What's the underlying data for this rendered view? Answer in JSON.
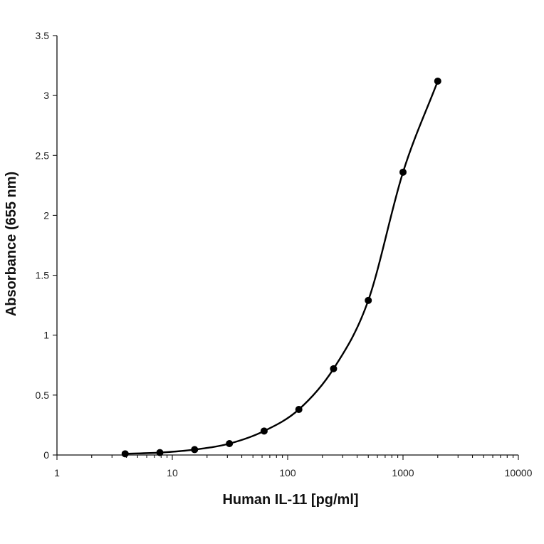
{
  "chart_data": {
    "type": "scatter",
    "title": "",
    "xlabel": "Human IL-11 [pg/ml]",
    "ylabel": "Absorbance (655 nm)",
    "x_scale": "log",
    "xlim": [
      1,
      10000
    ],
    "ylim": [
      0,
      3.5
    ],
    "x_ticks": [
      1,
      10,
      100,
      1000,
      10000
    ],
    "x_tick_labels": [
      "1",
      "10",
      "100",
      "1000",
      "10000"
    ],
    "y_ticks": [
      0,
      0.5,
      1,
      1.5,
      2,
      2.5,
      3,
      3.5
    ],
    "y_tick_labels": [
      "0",
      "0.5",
      "1",
      "1.5",
      "2",
      "2.5",
      "3",
      "3.5"
    ],
    "grid": false,
    "legend": "none",
    "series": [
      {
        "x": [
          3.9,
          7.8,
          15.6,
          31.25,
          62.5,
          125,
          250,
          500,
          1000,
          2000
        ],
        "y": [
          0.01,
          0.02,
          0.045,
          0.095,
          0.2,
          0.38,
          0.72,
          1.29,
          2.36,
          3.12
        ],
        "fit_curve": true
      }
    ],
    "colors": {
      "marker": "#000000",
      "line": "#000000"
    }
  }
}
